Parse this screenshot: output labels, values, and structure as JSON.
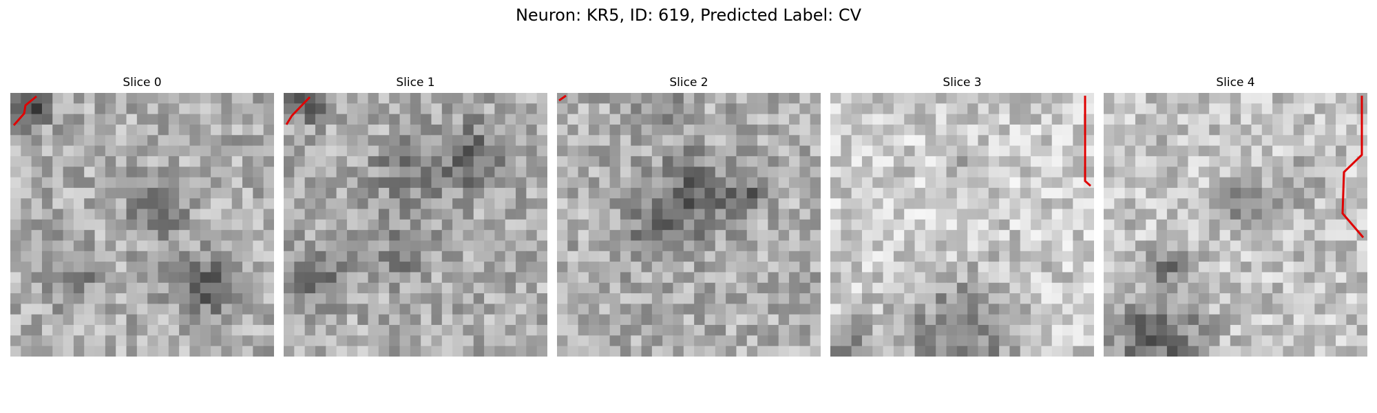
{
  "figure": {
    "suptitle": "Neuron: KR5, ID: 619, Predicted Label: CV",
    "colormap": "gray",
    "contour_color": "#e00000"
  },
  "slices": [
    {
      "title": "Slice 0",
      "seed": 11,
      "blobs": [
        [
          0.55,
          0.43,
          0.1,
          0.3
        ],
        [
          0.75,
          0.74,
          0.11,
          0.28
        ],
        [
          0.22,
          0.7,
          0.1,
          0.22
        ],
        [
          0.08,
          0.06,
          0.07,
          0.35
        ]
      ]
    },
    {
      "title": "Slice 1",
      "seed": 23,
      "blobs": [
        [
          0.7,
          0.25,
          0.14,
          0.25
        ],
        [
          0.45,
          0.3,
          0.12,
          0.18
        ],
        [
          0.12,
          0.7,
          0.1,
          0.3
        ],
        [
          0.08,
          0.03,
          0.08,
          0.35
        ],
        [
          0.45,
          0.6,
          0.12,
          0.15
        ]
      ]
    },
    {
      "title": "Slice 2",
      "seed": 37,
      "blobs": [
        [
          0.5,
          0.4,
          0.16,
          0.28
        ],
        [
          0.72,
          0.38,
          0.07,
          0.25
        ],
        [
          0.35,
          0.55,
          0.1,
          0.18
        ],
        [
          0.4,
          0.05,
          0.08,
          0.15
        ]
      ]
    },
    {
      "title": "Slice 3",
      "seed": 49,
      "bright": 0.12,
      "blobs": [
        [
          0.5,
          0.92,
          0.22,
          0.32
        ],
        [
          0.08,
          0.96,
          0.1,
          0.3
        ],
        [
          0.52,
          0.27,
          0.08,
          0.12
        ]
      ]
    },
    {
      "title": "Slice 4",
      "seed": 61,
      "bright": 0.08,
      "blobs": [
        [
          0.55,
          0.42,
          0.1,
          0.2
        ],
        [
          0.25,
          0.66,
          0.07,
          0.22
        ],
        [
          0.2,
          0.93,
          0.18,
          0.34
        ],
        [
          0.75,
          0.35,
          0.08,
          0.15
        ]
      ]
    }
  ]
}
